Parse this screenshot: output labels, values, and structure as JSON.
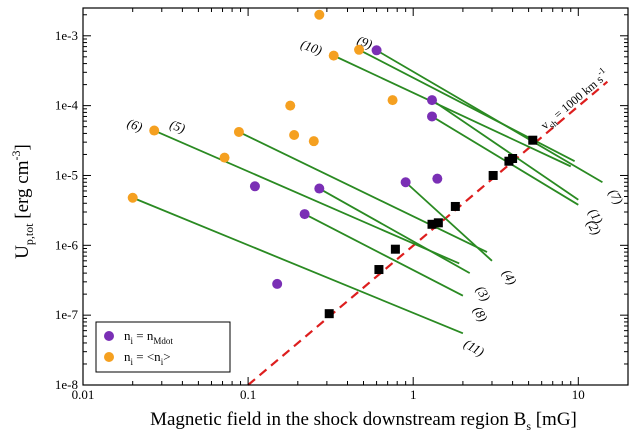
{
  "chart_data": {
    "type": "scatter",
    "xscale": "log",
    "yscale": "log",
    "xlim": [
      0.01,
      20
    ],
    "ylim": [
      1e-08,
      0.0025
    ],
    "xticks": [
      {
        "v": 0.01,
        "label": "0.01"
      },
      {
        "v": 0.1,
        "label": "0.1"
      },
      {
        "v": 1,
        "label": "1"
      },
      {
        "v": 10,
        "label": "10"
      }
    ],
    "yticks": [
      {
        "v": 1e-08,
        "label": "1e-8"
      },
      {
        "v": 1e-07,
        "label": "1e-7"
      },
      {
        "v": 1e-06,
        "label": "1e-6"
      },
      {
        "v": 1e-05,
        "label": "1e-5"
      },
      {
        "v": 0.0001,
        "label": "1e-4"
      },
      {
        "v": 0.001,
        "label": "1e-3"
      }
    ],
    "xlabel": {
      "main": "Magnetic field in the shock downstream region  B",
      "sub": "s",
      "unit": " [mG]"
    },
    "ylabel": {
      "main": "U",
      "sub": "p,tot",
      "unit": " [erg cm",
      "sup": "-3",
      "close": "]"
    },
    "colors": {
      "line": "#2a8a22",
      "purple": "#7a2fb5",
      "orange": "#f5a020",
      "square": "#000000",
      "reference": "#dd1e1e"
    },
    "reference_line": {
      "label": "v",
      "label_sub": "sh",
      "label_rest": " = 1000 km s",
      "label_sup": "-1",
      "points": [
        [
          0.1,
          1e-08
        ],
        [
          15,
          0.00022
        ]
      ]
    },
    "series": [
      {
        "label": "(1)",
        "start": [
          1.3,
          0.00012
        ],
        "end": [
          10,
          4.5e-06
        ],
        "purple": [
          1.3,
          0.00012
        ],
        "orange": [
          0.75,
          0.00012
        ],
        "square": [
          3.8,
          1.6e-05
        ]
      },
      {
        "label": "(2)",
        "start": [
          1.3,
          7e-05
        ],
        "end": [
          10,
          3.8e-06
        ],
        "purple": [
          1.3,
          7e-05
        ],
        "orange": [
          0.18,
          0.0001
        ],
        "square": [
          3.05,
          1e-05
        ]
      },
      {
        "label": "(3)",
        "start": [
          0.27,
          6.5e-06
        ],
        "end": [
          2.2,
          4e-07
        ],
        "purple": [
          0.27,
          6.5e-06
        ],
        "orange": [
          0.19,
          3.8e-05
        ],
        "square": [
          0.78,
          8.8e-07
        ]
      },
      {
        "label": "(4)",
        "start": [
          0.9,
          8e-06
        ],
        "end": [
          3.0,
          6e-07
        ],
        "purple": [
          0.9,
          8e-06
        ],
        "orange": [
          0.25,
          3.1e-05
        ],
        "square": [
          1.42,
          2.1e-06
        ]
      },
      {
        "label": "(5)",
        "start": [
          0.088,
          4.2e-05
        ],
        "end": [
          2.8,
          8e-07
        ],
        "purple": [
          1.4,
          9e-06
        ],
        "orange": [
          0.088,
          4.2e-05
        ],
        "square": [
          1.8,
          3.6e-06
        ]
      },
      {
        "label": "(6)",
        "start": [
          0.027,
          4.4e-05
        ],
        "end": [
          1.9,
          5.5e-07
        ],
        "purple": [
          0.11,
          7e-06
        ],
        "orange": [
          0.027,
          4.4e-05
        ],
        "square": [
          0.62,
          4.5e-07
        ]
      },
      {
        "label": "(7)",
        "start": [
          0.6,
          0.00062
        ],
        "end": [
          14,
          8e-06
        ],
        "purple": [
          0.6,
          0.00062
        ],
        "orange": [
          0.27,
          0.002
        ],
        "square": [
          5.3,
          3.2e-05
        ]
      },
      {
        "label": "(8)",
        "start": [
          0.22,
          2.8e-06
        ],
        "end": [
          2.0,
          1.9e-07
        ],
        "purple": [
          0.22,
          2.8e-06
        ],
        "orange": [
          0.072,
          1.8e-05
        ],
        "square": [
          1.3,
          2e-06
        ]
      },
      {
        "label": "(9)",
        "start": [
          0.47,
          0.00063
        ],
        "end": [
          9.5,
          1.6e-05
        ],
        "purple": [
          null,
          null
        ],
        "orange": [
          0.47,
          0.00063
        ],
        "square": [
          4.0,
          1.75e-05
        ]
      },
      {
        "label": "(10)",
        "start": [
          0.33,
          0.00052
        ],
        "end": [
          9.0,
          1.35e-05
        ],
        "purple": [
          null,
          null
        ],
        "orange": [
          0.33,
          0.00052
        ],
        "square": [
          null,
          null
        ]
      },
      {
        "label": "(11)",
        "start": [
          0.02,
          4.8e-06
        ],
        "end": [
          2.0,
          5.5e-08
        ],
        "purple": [
          0.15,
          2.8e-07
        ],
        "orange": [
          0.02,
          4.8e-06
        ],
        "square": [
          0.31,
          1.05e-07
        ]
      }
    ],
    "legend": {
      "position": "bottom-left",
      "items": [
        {
          "color": "#7a2fb5",
          "text": "n",
          "sub": "i",
          "rest": " = n",
          "sub2": "Mdot"
        },
        {
          "color": "#f5a020",
          "text": "n",
          "sub": "i",
          "rest": " = <n",
          "sub2": "i",
          "close": ">"
        }
      ]
    }
  }
}
